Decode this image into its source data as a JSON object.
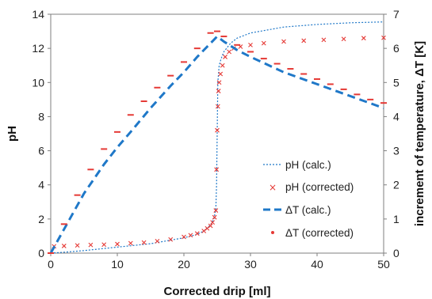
{
  "chart_data": {
    "type": "line",
    "xlabel": "Corrected drip [ml]",
    "ylabel_left": "pH",
    "ylabel_right": "increment of temperature, ΔT [K]",
    "xlim": [
      0,
      50
    ],
    "ylim_left": [
      0,
      14
    ],
    "ylim_right": [
      0,
      7
    ],
    "xticks": [
      "0",
      "10",
      "20",
      "30",
      "40",
      "50"
    ],
    "yticks_left": [
      "0",
      "2",
      "4",
      "6",
      "8",
      "10",
      "12",
      "14"
    ],
    "yticks_right": [
      "0",
      "1",
      "2",
      "3",
      "4",
      "5",
      "6",
      "7"
    ],
    "grid": false,
    "legend_position": "bottom-right",
    "series": [
      {
        "name": "pH (calc.)",
        "axis": "left",
        "style": "dotted-line",
        "color": "#1f78c8",
        "x": [
          0,
          2,
          5,
          10,
          15,
          20,
          22,
          23,
          24,
          24.5,
          24.8,
          24.9,
          25.0,
          25.1,
          25.3,
          25.6,
          26,
          27,
          28,
          30,
          35,
          40,
          45,
          50
        ],
        "y": [
          0.0,
          0.05,
          0.15,
          0.35,
          0.55,
          0.9,
          1.1,
          1.3,
          1.65,
          2.0,
          2.6,
          4.0,
          7.0,
          10.0,
          11.0,
          11.4,
          11.8,
          12.3,
          12.6,
          12.9,
          13.25,
          13.4,
          13.5,
          13.55
        ]
      },
      {
        "name": "pH (corrected)",
        "axis": "left",
        "style": "cross-markers",
        "color": "#e53935",
        "x": [
          0.5,
          2,
          4,
          6,
          8,
          10,
          12,
          14,
          16,
          18,
          20,
          21,
          22,
          23,
          23.5,
          24,
          24.3,
          24.6,
          24.8,
          24.9,
          25.0,
          25.1,
          25.2,
          25.3,
          25.5,
          25.8,
          26.2,
          26.8,
          27.5,
          28.5,
          30,
          32,
          35,
          38,
          41,
          44,
          47,
          50
        ],
        "y": [
          0.4,
          0.42,
          0.45,
          0.48,
          0.5,
          0.53,
          0.58,
          0.62,
          0.7,
          0.8,
          0.95,
          1.05,
          1.15,
          1.3,
          1.45,
          1.6,
          1.8,
          2.1,
          2.5,
          4.9,
          7.2,
          8.6,
          9.5,
          10.0,
          10.5,
          11.0,
          11.5,
          11.8,
          12.0,
          12.1,
          12.2,
          12.3,
          12.4,
          12.45,
          12.5,
          12.55,
          12.6,
          12.62
        ]
      },
      {
        "name": "ΔT (calc.)",
        "axis": "right",
        "style": "dashed-line",
        "color": "#1f78c8",
        "x": [
          0,
          2,
          5,
          8,
          10,
          12,
          15,
          18,
          20,
          22,
          24,
          25,
          26,
          28,
          30,
          35,
          40,
          45,
          50
        ],
        "y": [
          0.0,
          0.7,
          1.75,
          2.6,
          3.1,
          3.55,
          4.25,
          4.9,
          5.3,
          5.75,
          6.15,
          6.35,
          6.2,
          5.95,
          5.75,
          5.3,
          4.95,
          4.6,
          4.25
        ]
      },
      {
        "name": "ΔT (corrected)",
        "axis": "right",
        "style": "dash-markers",
        "color": "#e53935",
        "x": [
          0,
          2,
          4,
          6,
          8,
          10,
          12,
          14,
          16,
          18,
          20,
          22,
          24,
          25,
          26,
          28,
          30,
          32,
          34,
          36,
          38,
          40,
          42,
          44,
          46,
          48,
          50
        ],
        "y": [
          0.0,
          0.85,
          1.7,
          2.45,
          3.05,
          3.55,
          4.05,
          4.45,
          4.85,
          5.2,
          5.6,
          6.0,
          6.45,
          6.5,
          6.35,
          6.1,
          5.9,
          5.7,
          5.55,
          5.4,
          5.25,
          5.1,
          4.95,
          4.8,
          4.65,
          4.5,
          4.4
        ]
      }
    ]
  },
  "legend": {
    "items": [
      {
        "label": "pH (calc.)",
        "icon": "dotted-line"
      },
      {
        "label": "pH (corrected)",
        "icon": "cross-marker"
      },
      {
        "label": "ΔT (calc.)",
        "icon": "dashed-line"
      },
      {
        "label": "ΔT (corrected)",
        "icon": "dot-marker"
      }
    ]
  },
  "colors": {
    "blue": "#1f78c8",
    "red": "#e53935",
    "frame": "#7f7f7f"
  }
}
